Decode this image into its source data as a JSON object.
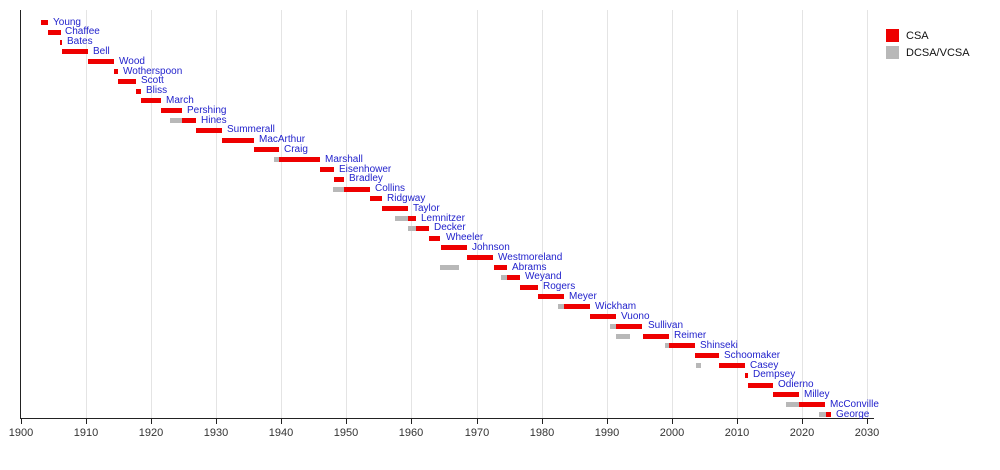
{
  "chart_data": {
    "type": "timeline",
    "description": "Timeline of tenures: red bars = Chief of Staff of the Army (CSA), gray bars = Deputy/Vice Chief of Staff (DCSA/VCSA)",
    "x_axis": {
      "min": 1900,
      "max": 2030,
      "tick_interval": 10,
      "ticks": [
        1900,
        1910,
        1920,
        1930,
        1940,
        1950,
        1960,
        1970,
        1980,
        1990,
        2000,
        2010,
        2020,
        2030
      ]
    },
    "legend": [
      {
        "label": "CSA",
        "color": "#ee0000"
      },
      {
        "label": "DCSA/VCSA",
        "color": "#b8b8b8"
      }
    ],
    "people": [
      {
        "name": "Young",
        "csa": [
          1903.0,
          1904.1
        ]
      },
      {
        "name": "Chaffee",
        "csa": [
          1904.1,
          1906.05
        ]
      },
      {
        "name": "Bates",
        "csa": [
          1906.05,
          1906.35
        ]
      },
      {
        "name": "Bell",
        "csa": [
          1906.35,
          1910.3
        ]
      },
      {
        "name": "Wood",
        "csa": [
          1910.3,
          1914.3
        ]
      },
      {
        "name": "Wotherspoon",
        "csa": [
          1914.3,
          1914.9
        ]
      },
      {
        "name": "Scott",
        "csa": [
          1914.9,
          1917.7
        ]
      },
      {
        "name": "Bliss",
        "csa": [
          1917.7,
          1918.4
        ]
      },
      {
        "name": "March",
        "csa": [
          1918.4,
          1921.5
        ]
      },
      {
        "name": "Pershing",
        "csa": [
          1921.5,
          1924.7
        ]
      },
      {
        "name": "Hines",
        "vcsa": [
          1922.9,
          1924.7
        ],
        "csa": [
          1924.7,
          1926.9
        ]
      },
      {
        "name": "Summerall",
        "csa": [
          1926.9,
          1930.9
        ]
      },
      {
        "name": "MacArthur",
        "csa": [
          1930.9,
          1935.75
        ]
      },
      {
        "name": "Craig",
        "csa": [
          1935.75,
          1939.6
        ]
      },
      {
        "name": "Marshall",
        "vcsa": [
          1938.8,
          1939.65
        ],
        "csa": [
          1939.65,
          1945.9
        ]
      },
      {
        "name": "Eisenhower",
        "csa": [
          1945.9,
          1948.1
        ]
      },
      {
        "name": "Bradley",
        "csa": [
          1948.1,
          1949.6
        ]
      },
      {
        "name": "Collins",
        "vcsa": [
          1947.9,
          1949.6
        ],
        "csa": [
          1949.6,
          1953.6
        ]
      },
      {
        "name": "Ridgway",
        "csa": [
          1953.6,
          1955.5
        ]
      },
      {
        "name": "Taylor",
        "csa": [
          1955.5,
          1959.5
        ]
      },
      {
        "name": "Lemnitzer",
        "vcsa": [
          1957.5,
          1959.5
        ],
        "csa": [
          1959.5,
          1960.75
        ]
      },
      {
        "name": "Decker",
        "vcsa": [
          1959.5,
          1960.75
        ],
        "csa": [
          1960.75,
          1962.75
        ]
      },
      {
        "name": "Wheeler",
        "csa": [
          1962.75,
          1964.5
        ]
      },
      {
        "name": "Johnson",
        "csa": [
          1964.5,
          1968.5
        ]
      },
      {
        "name": "Westmoreland",
        "csa": [
          1968.5,
          1972.5
        ]
      },
      {
        "name": "Abrams",
        "vcsa": [
          1964.4,
          1967.3
        ],
        "csa": [
          1972.75,
          1974.7
        ]
      },
      {
        "name": "Weyand",
        "vcsa": [
          1973.75,
          1974.75
        ],
        "csa": [
          1974.75,
          1976.75
        ]
      },
      {
        "name": "Rogers",
        "csa": [
          1976.75,
          1979.5
        ]
      },
      {
        "name": "Meyer",
        "csa": [
          1979.5,
          1983.5
        ]
      },
      {
        "name": "Wickham",
        "vcsa": [
          1982.5,
          1983.5
        ],
        "csa": [
          1983.5,
          1987.5
        ]
      },
      {
        "name": "Vuono",
        "csa": [
          1987.5,
          1991.5
        ]
      },
      {
        "name": "Sullivan",
        "vcsa": [
          1990.5,
          1991.5
        ],
        "csa": [
          1991.5,
          1995.5
        ]
      },
      {
        "name": "Reimer",
        "vcsa": [
          1991.5,
          1993.6
        ],
        "csa": [
          1995.5,
          1999.5
        ]
      },
      {
        "name": "Shinseki",
        "vcsa": [
          1998.9,
          1999.5
        ],
        "csa": [
          1999.5,
          2003.5
        ]
      },
      {
        "name": "Schoomaker",
        "csa": [
          2003.6,
          2007.3
        ]
      },
      {
        "name": "Casey",
        "vcsa": [
          2003.75,
          2004.55
        ],
        "csa": [
          2007.3,
          2011.3
        ]
      },
      {
        "name": "Dempsey",
        "csa": [
          2011.3,
          2011.7
        ]
      },
      {
        "name": "Odierno",
        "csa": [
          2011.7,
          2015.6
        ]
      },
      {
        "name": "Milley",
        "csa": [
          2015.6,
          2019.6
        ]
      },
      {
        "name": "McConville",
        "vcsa": [
          2017.5,
          2019.5
        ],
        "csa": [
          2019.6,
          2023.6
        ]
      },
      {
        "name": "George",
        "vcsa": [
          2022.6,
          2023.7
        ],
        "csa": [
          2023.7,
          2024.5
        ]
      }
    ]
  }
}
